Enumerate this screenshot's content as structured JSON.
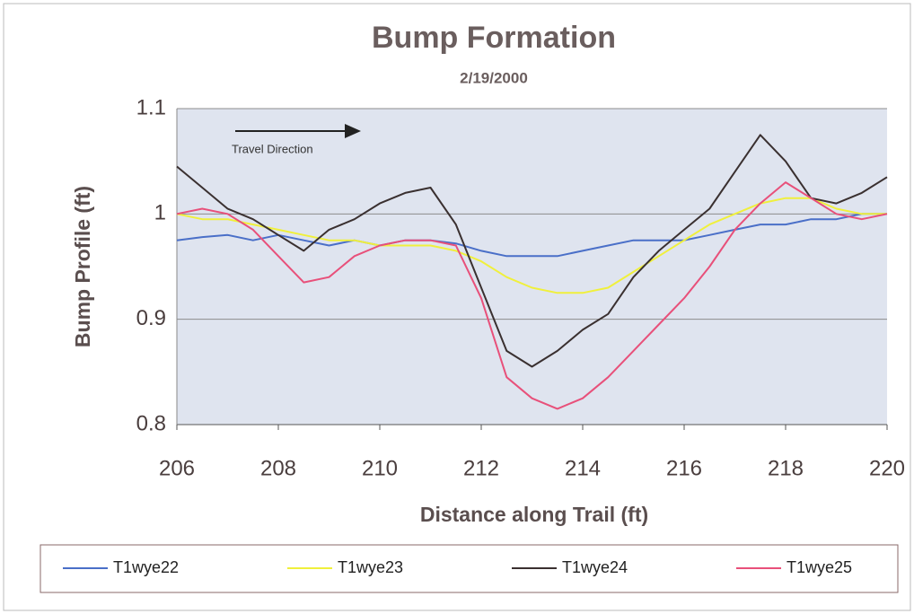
{
  "chart_data": {
    "type": "line",
    "title": "Bump Formation",
    "subtitle": "2/19/2000",
    "x_label": "Distance along Trail (ft)",
    "y_label": "Bump Profile (ft)",
    "annotation": "Travel Direction",
    "xlim": [
      206,
      220
    ],
    "xticks": [
      206,
      208,
      210,
      212,
      214,
      216,
      218,
      220
    ],
    "ylim": [
      0.8,
      1.1
    ],
    "yticks": [
      0.8,
      0.9,
      1,
      1.1
    ],
    "grid": true,
    "legend": "bottom",
    "x": [
      206,
      206.5,
      207,
      207.5,
      208,
      208.5,
      209,
      209.5,
      210,
      210.5,
      211,
      211.5,
      212,
      212.5,
      213,
      213.5,
      214,
      214.5,
      215,
      215.5,
      216,
      216.5,
      217,
      217.5,
      218,
      218.5,
      219,
      219.5,
      220
    ],
    "series": [
      {
        "name": "T1wye22",
        "color": "#4a6fc8",
        "values": [
          0.975,
          0.978,
          0.98,
          0.975,
          0.98,
          0.975,
          0.97,
          0.975,
          0.97,
          0.975,
          0.975,
          0.972,
          0.965,
          0.96,
          0.96,
          0.96,
          0.965,
          0.97,
          0.975,
          0.975,
          0.975,
          0.98,
          0.985,
          0.99,
          0.99,
          0.995,
          0.995,
          1.0,
          1.0
        ]
      },
      {
        "name": "T1wye23",
        "color": "#f0f03c",
        "values": [
          1.0,
          0.995,
          0.995,
          0.99,
          0.985,
          0.98,
          0.975,
          0.975,
          0.97,
          0.97,
          0.97,
          0.965,
          0.955,
          0.94,
          0.93,
          0.925,
          0.925,
          0.93,
          0.945,
          0.96,
          0.975,
          0.99,
          1.0,
          1.01,
          1.015,
          1.015,
          1.005,
          1.0,
          1.0
        ]
      },
      {
        "name": "T1wye24",
        "color": "#3a3030",
        "values": [
          1.045,
          1.025,
          1.005,
          0.995,
          0.98,
          0.965,
          0.985,
          0.995,
          1.01,
          1.02,
          1.025,
          0.99,
          0.93,
          0.87,
          0.855,
          0.87,
          0.89,
          0.905,
          0.94,
          0.965,
          0.985,
          1.005,
          1.04,
          1.075,
          1.05,
          1.015,
          1.01,
          1.02,
          1.035
        ]
      },
      {
        "name": "T1wye25",
        "color": "#e8507a",
        "values": [
          1.0,
          1.005,
          1.0,
          0.985,
          0.96,
          0.935,
          0.94,
          0.96,
          0.97,
          0.975,
          0.975,
          0.97,
          0.92,
          0.845,
          0.825,
          0.815,
          0.825,
          0.845,
          0.87,
          0.895,
          0.92,
          0.95,
          0.985,
          1.01,
          1.03,
          1.015,
          1.0,
          0.995,
          1.0
        ]
      }
    ]
  }
}
